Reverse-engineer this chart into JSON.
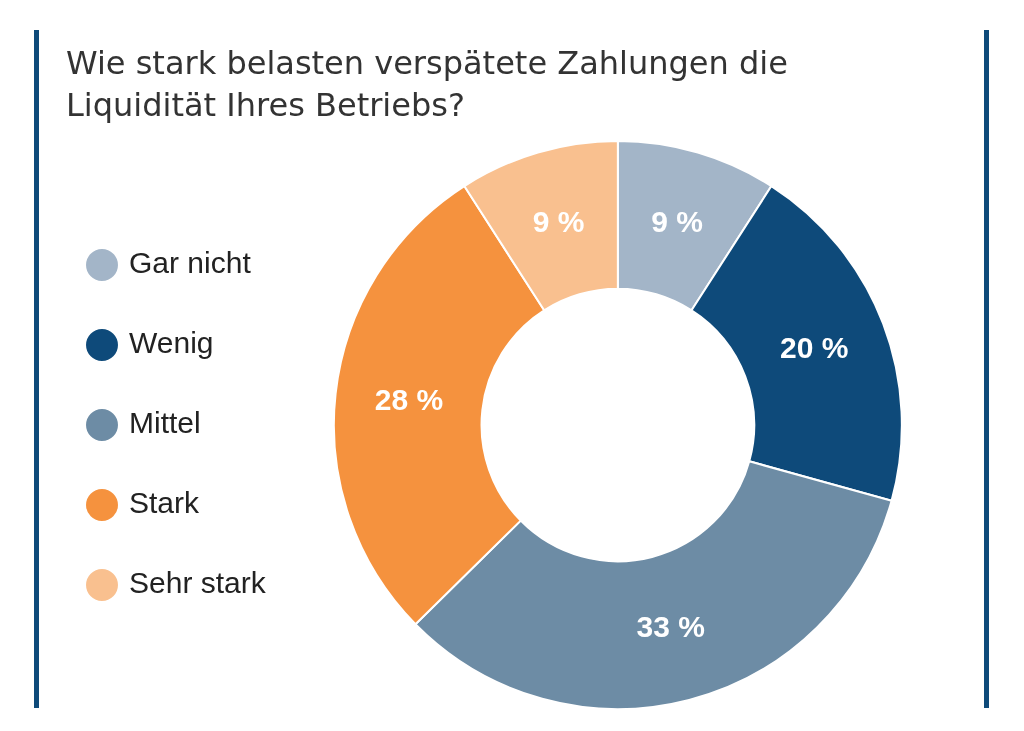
{
  "chart_data": {
    "type": "donut",
    "title": "Wie stark belasten verspätete Zahlungen die Liquidität Ihres Betriebs?",
    "categories": [
      "Gar nicht",
      "Wenig",
      "Mittel",
      "Stark",
      "Sehr stark"
    ],
    "values": [
      9,
      20,
      33,
      28,
      9
    ],
    "colors": [
      "#a3b5c8",
      "#0e4a7a",
      "#6d8ca5",
      "#f5923e",
      "#f9c08f"
    ],
    "value_labels": [
      "9 %",
      "20 %",
      "33 %",
      "28 %",
      "9 %"
    ],
    "legend": "left"
  }
}
